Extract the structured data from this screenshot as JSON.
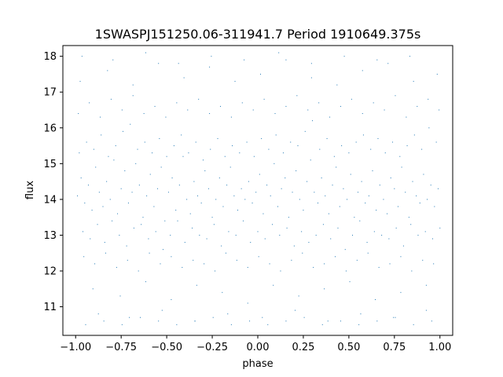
{
  "chart_data": {
    "type": "scatter",
    "title": "1SWASPJ151250.06-311941.7 Period 1910649.375s",
    "xlabel": "phase",
    "ylabel": "flux",
    "xlim": [
      -1.07,
      1.07
    ],
    "ylim": [
      10.2,
      18.3
    ],
    "xticks": [
      {
        "value": -1.0,
        "label": "−1.00"
      },
      {
        "value": -0.75,
        "label": "−0.75"
      },
      {
        "value": -0.5,
        "label": "−0.50"
      },
      {
        "value": -0.25,
        "label": "−0.25"
      },
      {
        "value": 0.0,
        "label": "0.00"
      },
      {
        "value": 0.25,
        "label": "0.25"
      },
      {
        "value": 0.5,
        "label": "0.50"
      },
      {
        "value": 0.75,
        "label": "0.75"
      },
      {
        "value": 1.0,
        "label": "1.00"
      }
    ],
    "yticks": [
      {
        "value": 11,
        "label": "11"
      },
      {
        "value": 12,
        "label": "12"
      },
      {
        "value": 13,
        "label": "13"
      },
      {
        "value": 14,
        "label": "14"
      },
      {
        "value": 15,
        "label": "15"
      },
      {
        "value": 16,
        "label": "16"
      },
      {
        "value": 17,
        "label": "17"
      },
      {
        "value": 18,
        "label": "18"
      }
    ],
    "grid": false,
    "marker_color": "#1f77b4",
    "series": [
      {
        "x": [
          -0.99,
          -0.97,
          -0.95,
          -0.93,
          -0.91,
          -0.89,
          -0.87,
          -0.85,
          -0.83,
          -0.81,
          -0.79,
          -0.77,
          -0.75,
          -0.73,
          -0.71,
          -0.69,
          -0.67,
          -0.65,
          -0.63,
          -0.61,
          -0.59,
          -0.57,
          -0.55,
          -0.53,
          -0.51,
          -0.49,
          -0.47,
          -0.45,
          -0.43,
          -0.41,
          -0.39,
          -0.37,
          -0.35,
          -0.33,
          -0.31,
          -0.29,
          -0.27,
          -0.25,
          -0.23,
          -0.21,
          -0.19,
          -0.17,
          -0.15,
          -0.13,
          -0.11,
          -0.09,
          -0.07,
          -0.05,
          -0.03,
          -0.01,
          0.01,
          0.03,
          0.05,
          0.07,
          0.09,
          0.11,
          0.13,
          0.15,
          0.17,
          0.19,
          0.21,
          0.23,
          0.25,
          0.27,
          0.29,
          0.31,
          0.33,
          0.35,
          0.37,
          0.39,
          0.41,
          0.43,
          0.45,
          0.47,
          0.49,
          0.51,
          0.53,
          0.55,
          0.57,
          0.59,
          0.61,
          0.63,
          0.65,
          0.67,
          0.69,
          0.71,
          0.73,
          0.75,
          0.77,
          0.79,
          0.81,
          0.83,
          0.85,
          0.87,
          0.89,
          0.91,
          0.93,
          0.95,
          0.97,
          0.99,
          -0.98,
          -0.96,
          -0.94,
          -0.92,
          -0.9,
          -0.88,
          -0.86,
          -0.84,
          -0.82,
          -0.8,
          -0.78,
          -0.76,
          -0.74,
          -0.72,
          -0.7,
          -0.68,
          -0.66,
          -0.64,
          -0.62,
          -0.6,
          -0.58,
          -0.56,
          -0.54,
          -0.52,
          -0.5,
          -0.48,
          -0.46,
          -0.44,
          -0.42,
          -0.4,
          -0.38,
          -0.36,
          -0.34,
          -0.32,
          -0.3,
          -0.28,
          -0.26,
          -0.24,
          -0.22,
          -0.2,
          -0.18,
          -0.16,
          -0.14,
          -0.12,
          -0.1,
          -0.08,
          -0.06,
          -0.04,
          -0.02,
          0.0,
          0.02,
          0.04,
          0.06,
          0.08,
          0.1,
          0.12,
          0.14,
          0.16,
          0.18,
          0.2,
          0.22,
          0.24,
          0.26,
          0.28,
          0.3,
          0.32,
          0.34,
          0.36,
          0.38,
          0.4,
          0.42,
          0.44,
          0.46,
          0.48,
          0.5,
          0.52,
          0.54,
          0.56,
          0.58,
          0.6,
          0.62,
          0.64,
          0.66,
          0.68,
          0.7,
          0.72,
          0.74,
          0.76,
          0.78,
          0.8,
          0.82,
          0.84,
          0.86,
          0.88,
          0.9,
          0.92,
          0.94,
          0.96,
          0.98,
          1.0,
          -0.985,
          -0.955,
          -0.925,
          -0.895,
          -0.865,
          -0.835,
          -0.805,
          -0.775,
          -0.745,
          -0.715,
          -0.685,
          -0.655,
          -0.625,
          -0.595,
          -0.565,
          -0.535,
          -0.505,
          -0.475,
          -0.445,
          -0.415,
          -0.385,
          -0.355,
          -0.325,
          -0.295,
          -0.265,
          -0.235,
          -0.205,
          -0.175,
          -0.145,
          -0.115,
          -0.085,
          -0.055,
          -0.025,
          0.005,
          0.035,
          0.065,
          0.095,
          0.125,
          0.155,
          0.185,
          0.215,
          0.245,
          0.275,
          0.305,
          0.335,
          0.365,
          0.395,
          0.425,
          0.455,
          0.485,
          0.515,
          0.545,
          0.575,
          0.605,
          0.635,
          0.665,
          0.695,
          0.725,
          0.755,
          0.785,
          0.815,
          0.845,
          0.875,
          0.905,
          0.935,
          0.965,
          0.995,
          -0.975,
          -0.905,
          -0.825,
          -0.755,
          -0.685,
          -0.615,
          -0.545,
          -0.475,
          -0.405,
          -0.335,
          -0.265,
          -0.195,
          -0.125,
          -0.055,
          0.015,
          0.085,
          0.155,
          0.225,
          0.295,
          0.365,
          0.435,
          0.505,
          0.575,
          0.645,
          0.715,
          0.785,
          0.855,
          0.925,
          0.985,
          -0.965,
          -0.875,
          -0.795,
          -0.705,
          -0.615,
          -0.525,
          -0.435,
          -0.345,
          -0.255,
          -0.165,
          -0.075,
          0.025,
          0.115,
          0.205,
          0.295,
          0.385,
          0.475,
          0.565,
          0.655,
          0.745,
          0.835,
          0.925,
          -0.945,
          -0.845,
          -0.745,
          -0.645,
          -0.545,
          -0.445,
          -0.345,
          -0.245,
          -0.145,
          -0.045,
          0.055,
          0.155,
          0.255,
          0.355,
          0.455,
          0.555,
          0.655,
          0.755,
          0.855,
          0.955
        ],
        "y": [
          14.1,
          14.6,
          13.9,
          14.4,
          13.7,
          14.9,
          14.2,
          13.8,
          14.5,
          14.0,
          15.1,
          13.6,
          14.3,
          14.8,
          13.9,
          14.2,
          15.0,
          14.4,
          13.5,
          14.1,
          14.7,
          13.8,
          14.3,
          14.9,
          13.4,
          14.2,
          14.6,
          13.7,
          14.4,
          15.2,
          14.0,
          13.6,
          14.5,
          14.1,
          13.9,
          14.8,
          14.3,
          13.5,
          14.0,
          14.6,
          13.8,
          14.4,
          14.9,
          14.1,
          13.7,
          14.3,
          14.0,
          14.5,
          13.9,
          14.2,
          14.7,
          13.6,
          14.4,
          14.1,
          15.0,
          13.8,
          14.3,
          14.6,
          13.5,
          14.2,
          14.8,
          14.0,
          13.7,
          14.5,
          15.1,
          14.2,
          13.9,
          14.6,
          14.1,
          13.6,
          14.4,
          14.9,
          13.8,
          14.3,
          14.0,
          14.7,
          13.5,
          14.2,
          14.5,
          13.9,
          14.1,
          14.8,
          13.7,
          14.4,
          14.0,
          13.6,
          14.6,
          14.3,
          13.8,
          14.9,
          14.2,
          13.5,
          14.5,
          14.1,
          13.9,
          14.7,
          14.0,
          14.4,
          13.8,
          14.3,
          15.3,
          13.1,
          15.6,
          12.9,
          15.4,
          13.3,
          15.8,
          12.8,
          15.2,
          13.4,
          15.5,
          13.0,
          15.9,
          12.7,
          16.1,
          13.2,
          15.4,
          13.3,
          15.6,
          12.9,
          15.3,
          13.1,
          15.7,
          12.6,
          15.2,
          13.0,
          15.5,
          13.4,
          15.8,
          12.8,
          15.3,
          13.2,
          15.6,
          13.0,
          15.1,
          12.9,
          15.4,
          13.3,
          15.7,
          12.7,
          15.2,
          13.1,
          15.5,
          13.0,
          15.3,
          13.4,
          15.6,
          12.8,
          15.2,
          13.1,
          15.7,
          12.9,
          15.4,
          13.3,
          15.8,
          13.0,
          15.3,
          13.2,
          15.6,
          12.7,
          15.5,
          13.1,
          15.9,
          12.8,
          16.2,
          13.0,
          15.4,
          13.3,
          15.7,
          12.9,
          15.2,
          13.2,
          15.5,
          12.6,
          15.3,
          13.0,
          15.6,
          13.4,
          15.8,
          12.8,
          15.4,
          13.1,
          15.7,
          13.0,
          15.3,
          12.9,
          15.6,
          13.2,
          15.2,
          12.7,
          15.5,
          13.3,
          15.8,
          13.0,
          15.4,
          13.1,
          16.0,
          12.9,
          15.6,
          13.2,
          16.4,
          12.4,
          16.7,
          12.2,
          16.3,
          12.5,
          16.8,
          12.1,
          16.5,
          12.3,
          16.9,
          12.0,
          16.4,
          12.5,
          16.6,
          12.2,
          16.3,
          12.4,
          16.7,
          12.1,
          16.5,
          12.3,
          16.8,
          12.2,
          16.4,
          12.0,
          16.6,
          12.5,
          16.3,
          12.3,
          16.7,
          12.1,
          16.5,
          12.4,
          16.8,
          12.2,
          16.4,
          12.0,
          16.6,
          12.3,
          16.9,
          12.5,
          16.5,
          12.1,
          16.7,
          12.2,
          16.3,
          12.4,
          16.6,
          12.0,
          16.8,
          12.3,
          16.4,
          12.5,
          16.7,
          12.1,
          16.5,
          12.2,
          16.9,
          12.4,
          16.3,
          12.0,
          16.6,
          12.3,
          16.8,
          12.2,
          16.5,
          17.3,
          11.5,
          17.6,
          11.3,
          17.2,
          11.7,
          17.8,
          11.2,
          17.4,
          11.6,
          17.7,
          11.4,
          17.3,
          11.1,
          17.5,
          11.6,
          17.9,
          11.3,
          17.4,
          11.5,
          17.2,
          11.7,
          17.6,
          11.2,
          17.8,
          11.4,
          17.3,
          11.6,
          17.5,
          18.0,
          10.8,
          17.9,
          10.7,
          18.1,
          10.9,
          17.8,
          10.6,
          18.0,
          10.8,
          17.9,
          10.7,
          18.1,
          10.9,
          17.8,
          10.6,
          18.0,
          10.8,
          17.9,
          10.7,
          18.0,
          10.9,
          10.5,
          10.6,
          10.5,
          10.7,
          10.6,
          10.5,
          10.6,
          10.7,
          10.5,
          10.6,
          10.5,
          10.6,
          10.7,
          10.5,
          10.6,
          10.5,
          10.6,
          10.7,
          10.5,
          10.6
        ]
      }
    ]
  }
}
